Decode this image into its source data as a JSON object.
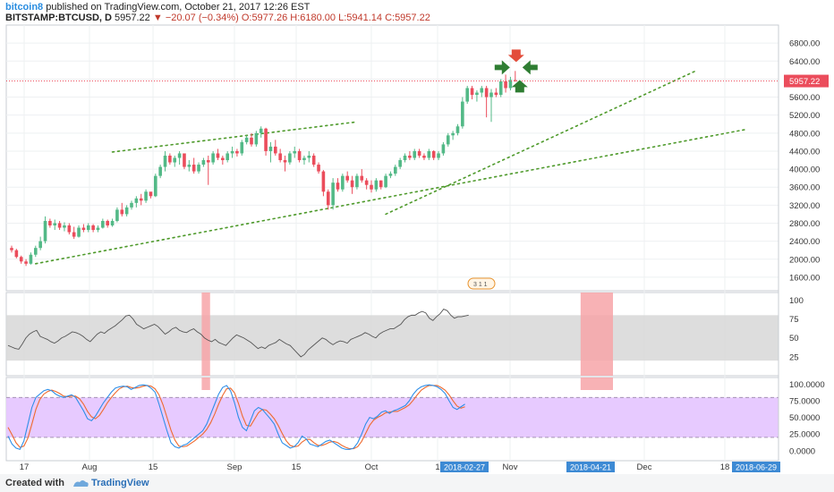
{
  "header": {
    "username": "bitcoin8",
    "published": "published on TradingView.com, October 21, 2017 12:26 EST",
    "symbol": "BITSTAMP:BTCUSD, D",
    "last": "5957.22",
    "change": "−20.07 (−0.34%)",
    "ohlc": "O:5977.26 H:6180.00 L:5941.14 C:5957.22"
  },
  "footer": {
    "created": "Created with",
    "brand": "TradingView"
  },
  "colors": {
    "up": "#53b987",
    "down": "#eb4d5c",
    "channel": "#4e9a2b",
    "rsi_line": "#555555",
    "rsi_band": "#d7d7d7",
    "stoch_k": "#2f8fe8",
    "stoch_d": "#ef6a2f",
    "stoch_band": "#e6c7ff",
    "highlight": "#f7a4a8",
    "price_label": "#eb4d5c",
    "date_label": "#3d8ad4"
  },
  "chart_data": [
    {
      "type": "candlestick",
      "title": "BITSTAMP:BTCUSD, D",
      "x_labels": [
        "17",
        "Aug",
        "15",
        "Sep",
        "15",
        "Oct",
        "1",
        "Nov",
        "Dec",
        "18"
      ],
      "axis_date_flags": [
        "2018-02-27",
        "2018-04-21",
        "2018-06-29"
      ],
      "y_ticks": [
        1600,
        2000,
        2400,
        2800,
        3200,
        3600,
        4000,
        4400,
        4800,
        5200,
        5600,
        6000,
        6400,
        6800
      ],
      "y_tick_labels": [
        "1600.00",
        "2000.00",
        "2400.00",
        "2800.00",
        "3200.00",
        "3600.00",
        "4000.00",
        "4400.00",
        "4800.00",
        "5200.00",
        "5600.00",
        "6000.00",
        "6400.00",
        "6800.00"
      ],
      "ylim": [
        1300,
        7200
      ],
      "last_price": 5957.22,
      "last_price_label": "5957.22",
      "candles": [
        [
          2250,
          2300,
          2150,
          2200
        ],
        [
          2200,
          2230,
          2020,
          2050
        ],
        [
          2050,
          2080,
          1900,
          1950
        ],
        [
          1950,
          2000,
          1850,
          1900
        ],
        [
          1900,
          2150,
          1880,
          2100
        ],
        [
          2100,
          2300,
          2050,
          2250
        ],
        [
          2250,
          2500,
          2200,
          2400
        ],
        [
          2400,
          2950,
          2350,
          2850
        ],
        [
          2850,
          2900,
          2700,
          2750
        ],
        [
          2750,
          2880,
          2650,
          2800
        ],
        [
          2800,
          2850,
          2650,
          2700
        ],
        [
          2700,
          2820,
          2620,
          2750
        ],
        [
          2750,
          2800,
          2550,
          2600
        ],
        [
          2600,
          2720,
          2450,
          2500
        ],
        [
          2500,
          2750,
          2480,
          2700
        ],
        [
          2700,
          2780,
          2600,
          2650
        ],
        [
          2650,
          2800,
          2600,
          2750
        ],
        [
          2750,
          2780,
          2600,
          2650
        ],
        [
          2650,
          2750,
          2600,
          2700
        ],
        [
          2700,
          2900,
          2680,
          2850
        ],
        [
          2850,
          2880,
          2700,
          2750
        ],
        [
          2750,
          2900,
          2720,
          2850
        ],
        [
          2850,
          3150,
          2820,
          3100
        ],
        [
          3100,
          3250,
          2950,
          3000
        ],
        [
          3000,
          3200,
          2950,
          3150
        ],
        [
          3150,
          3300,
          3100,
          3250
        ],
        [
          3250,
          3400,
          3150,
          3350
        ],
        [
          3350,
          3450,
          3200,
          3300
        ],
        [
          3300,
          3550,
          3250,
          3500
        ],
        [
          3500,
          3450,
          3350,
          3400
        ],
        [
          3400,
          3900,
          3380,
          3850
        ],
        [
          3850,
          4100,
          3800,
          4050
        ],
        [
          4050,
          4400,
          3950,
          4300
        ],
        [
          4300,
          4350,
          4100,
          4150
        ],
        [
          4150,
          4300,
          4050,
          4250
        ],
        [
          4250,
          4400,
          4100,
          4350
        ],
        [
          4350,
          4300,
          4000,
          4050
        ],
        [
          4050,
          4200,
          3950,
          4100
        ],
        [
          4100,
          4250,
          3900,
          3950
        ],
        [
          3950,
          4150,
          3900,
          4100
        ],
        [
          4100,
          4250,
          4050,
          4200
        ],
        [
          4200,
          4300,
          3650,
          4150
        ],
        [
          4150,
          4400,
          4100,
          4350
        ],
        [
          4350,
          4450,
          4200,
          4250
        ],
        [
          4250,
          4300,
          4100,
          4200
        ],
        [
          4200,
          4400,
          4150,
          4350
        ],
        [
          4350,
          4500,
          4250,
          4400
        ],
        [
          4400,
          4450,
          4280,
          4350
        ],
        [
          4350,
          4650,
          4300,
          4600
        ],
        [
          4600,
          4750,
          4550,
          4700
        ],
        [
          4700,
          4800,
          4500,
          4550
        ],
        [
          4550,
          4850,
          4500,
          4800
        ],
        [
          4800,
          4950,
          4700,
          4900
        ],
        [
          4900,
          4920,
          4300,
          4400
        ],
        [
          4400,
          4600,
          4150,
          4500
        ],
        [
          4500,
          4650,
          4300,
          4350
        ],
        [
          4350,
          4450,
          4150,
          4200
        ],
        [
          4200,
          4300,
          3950,
          4150
        ],
        [
          4150,
          4400,
          4100,
          4350
        ],
        [
          4350,
          4500,
          4250,
          4400
        ],
        [
          4400,
          4450,
          4150,
          4200
        ],
        [
          4200,
          4300,
          4100,
          4250
        ],
        [
          4250,
          4400,
          4150,
          4300
        ],
        [
          4300,
          4350,
          4050,
          4100
        ],
        [
          4100,
          4150,
          3900,
          3950
        ],
        [
          3950,
          3980,
          3400,
          3500
        ],
        [
          3500,
          3550,
          3100,
          3200
        ],
        [
          3200,
          3800,
          3100,
          3700
        ],
        [
          3700,
          3800,
          3500,
          3550
        ],
        [
          3550,
          3900,
          3500,
          3850
        ],
        [
          3850,
          3950,
          3700,
          3750
        ],
        [
          3750,
          3850,
          3450,
          3600
        ],
        [
          3600,
          3900,
          3550,
          3850
        ],
        [
          3850,
          4000,
          3700,
          3750
        ],
        [
          3750,
          3800,
          3550,
          3650
        ],
        [
          3650,
          3750,
          3480,
          3550
        ],
        [
          3550,
          3800,
          3500,
          3750
        ],
        [
          3750,
          3750,
          3550,
          3600
        ],
        [
          3600,
          3900,
          3580,
          3850
        ],
        [
          3850,
          3950,
          3800,
          3900
        ],
        [
          3900,
          4100,
          3850,
          4050
        ],
        [
          4050,
          4250,
          4000,
          4200
        ],
        [
          4200,
          4350,
          4150,
          4300
        ],
        [
          4300,
          4400,
          4200,
          4250
        ],
        [
          4250,
          4450,
          4200,
          4400
        ],
        [
          4400,
          4450,
          4250,
          4300
        ],
        [
          4300,
          4350,
          4200,
          4250
        ],
        [
          4250,
          4450,
          4200,
          4400
        ],
        [
          4400,
          4420,
          4200,
          4250
        ],
        [
          4250,
          4400,
          4200,
          4350
        ],
        [
          4350,
          4600,
          4300,
          4550
        ],
        [
          4550,
          4800,
          4500,
          4750
        ],
        [
          4750,
          4850,
          4650,
          4800
        ],
        [
          4800,
          5000,
          4750,
          4950
        ],
        [
          4950,
          5600,
          4900,
          5500
        ],
        [
          5500,
          5850,
          5450,
          5800
        ],
        [
          5800,
          5850,
          5550,
          5650
        ],
        [
          5650,
          5750,
          5500,
          5700
        ],
        [
          5700,
          5850,
          5600,
          5800
        ],
        [
          5800,
          5850,
          5150,
          5600
        ],
        [
          5600,
          5780,
          5050,
          5700
        ],
        [
          5700,
          5800,
          5600,
          5650
        ],
        [
          5650,
          6000,
          5600,
          5950
        ],
        [
          5950,
          6100,
          5700,
          5800
        ],
        [
          5800,
          6050,
          5750,
          5980
        ],
        [
          5977.26,
          6180,
          5941.14,
          5957.22
        ]
      ],
      "trendlines": [
        {
          "x0": 21,
          "y0": 4380,
          "x1": 72,
          "y1": 5050
        },
        {
          "x0": 5,
          "y0": 1900,
          "x1": 153,
          "y1": 4880
        },
        {
          "x0": 78,
          "y0": 3000,
          "x1": 143,
          "y1": 6200
        }
      ],
      "arrows": [
        {
          "dir": "down",
          "color": "#e34d3b"
        },
        {
          "dir": "right",
          "color": "#2e7d32"
        },
        {
          "dir": "left",
          "color": "#2e7d32"
        },
        {
          "dir": "up",
          "color": "#2e7d32"
        }
      ],
      "badge": "3 1 1"
    },
    {
      "type": "line",
      "name": "RSI",
      "y_ticks": [
        25,
        50,
        75,
        100
      ],
      "ylim": [
        0,
        110
      ],
      "band": [
        20,
        80
      ],
      "highlight_ranges": [
        [
          40,
          41
        ],
        [
          119,
          125
        ]
      ],
      "values": [
        40,
        38,
        36,
        35,
        42,
        50,
        55,
        58,
        60,
        52,
        50,
        48,
        45,
        43,
        46,
        50,
        52,
        55,
        58,
        57,
        55,
        52,
        48,
        45,
        50,
        55,
        58,
        56,
        60,
        63,
        66,
        70,
        74,
        79,
        80,
        75,
        68,
        65,
        62,
        64,
        66,
        68,
        65,
        60,
        55,
        58,
        62,
        64,
        60,
        58,
        57,
        60,
        62,
        58,
        55,
        50,
        47,
        45,
        48,
        44,
        42,
        40,
        45,
        50,
        54,
        52,
        50,
        47,
        44,
        40,
        36,
        38,
        36,
        40,
        42,
        44,
        48,
        45,
        42,
        40,
        35,
        30,
        25,
        28,
        34,
        38,
        42,
        46,
        50,
        48,
        44,
        41,
        44,
        46,
        45,
        43,
        48,
        50,
        52,
        54,
        57,
        55,
        52,
        50,
        55,
        58,
        60,
        62,
        62,
        65,
        68,
        74,
        78,
        80,
        80,
        83,
        85,
        83,
        76,
        73,
        78,
        82,
        88,
        86,
        80,
        76,
        78,
        78,
        79,
        80
      ]
    },
    {
      "type": "line",
      "name": "Stochastic",
      "y_ticks": [
        0,
        25,
        50,
        75,
        100
      ],
      "y_tick_labels": [
        "0.0000",
        "25.0000",
        "50.0000",
        "75.0000",
        "100.0000"
      ],
      "ylim": [
        -15,
        110
      ],
      "band": [
        20,
        80
      ],
      "k": [
        22,
        10,
        4,
        2,
        15,
        40,
        65,
        80,
        85,
        90,
        92,
        90,
        85,
        82,
        80,
        82,
        84,
        80,
        70,
        60,
        48,
        45,
        52,
        62,
        72,
        80,
        88,
        94,
        96,
        97,
        96,
        92,
        95,
        98,
        99,
        98,
        94,
        88,
        70,
        50,
        30,
        12,
        6,
        4,
        8,
        10,
        15,
        20,
        25,
        30,
        40,
        55,
        70,
        85,
        95,
        98,
        90,
        72,
        50,
        35,
        30,
        45,
        60,
        65,
        62,
        55,
        48,
        40,
        25,
        12,
        8,
        4,
        6,
        12,
        22,
        18,
        10,
        8,
        6,
        10,
        14,
        16,
        12,
        8,
        4,
        2,
        2,
        4,
        12,
        25,
        40,
        50,
        48,
        52,
        58,
        60,
        56,
        60,
        62,
        65,
        68,
        75,
        85,
        92,
        96,
        98,
        99,
        98,
        96,
        92,
        86,
        75,
        65,
        62,
        66,
        70
      ],
      "d": [
        35,
        24,
        12,
        5,
        7,
        19,
        40,
        62,
        77,
        85,
        89,
        91,
        89,
        86,
        82,
        81,
        82,
        82,
        78,
        70,
        59,
        51,
        48,
        53,
        62,
        72,
        80,
        87,
        93,
        96,
        97,
        95,
        94,
        95,
        97,
        98,
        97,
        93,
        84,
        69,
        50,
        31,
        16,
        7,
        6,
        7,
        11,
        15,
        20,
        25,
        32,
        42,
        55,
        70,
        83,
        93,
        94,
        87,
        71,
        52,
        38,
        37,
        47,
        57,
        62,
        61,
        55,
        48,
        38,
        26,
        15,
        8,
        6,
        7,
        13,
        17,
        17,
        12,
        8,
        8,
        10,
        13,
        14,
        12,
        8,
        5,
        3,
        3,
        6,
        14,
        26,
        38,
        46,
        50,
        53,
        57,
        58,
        59,
        59,
        62,
        65,
        69,
        76,
        84,
        91,
        95,
        98,
        98,
        98,
        95,
        91,
        84,
        75,
        67,
        64,
        66
      ]
    }
  ]
}
